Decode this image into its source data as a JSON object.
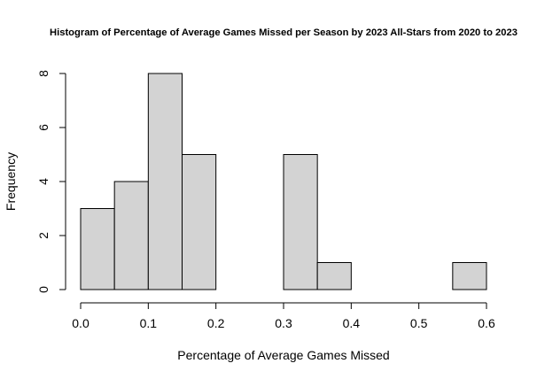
{
  "chart_data": {
    "type": "bar",
    "title": "Histogram of Percentage of Average Games Missed per Season by 2023 All-Stars from 2020 to 2023",
    "xlabel": "Percentage of Average Games Missed",
    "ylabel": "Frequency",
    "xlim": [
      0.0,
      0.6
    ],
    "ylim": [
      0,
      8
    ],
    "bins": [
      {
        "start": 0.0,
        "end": 0.05,
        "count": 3
      },
      {
        "start": 0.05,
        "end": 0.1,
        "count": 4
      },
      {
        "start": 0.1,
        "end": 0.15,
        "count": 8
      },
      {
        "start": 0.15,
        "end": 0.2,
        "count": 5
      },
      {
        "start": 0.2,
        "end": 0.25,
        "count": 0
      },
      {
        "start": 0.25,
        "end": 0.3,
        "count": 0
      },
      {
        "start": 0.3,
        "end": 0.35,
        "count": 5
      },
      {
        "start": 0.35,
        "end": 0.4,
        "count": 1
      },
      {
        "start": 0.4,
        "end": 0.45,
        "count": 0
      },
      {
        "start": 0.45,
        "end": 0.5,
        "count": 0
      },
      {
        "start": 0.5,
        "end": 0.55,
        "count": 0
      },
      {
        "start": 0.55,
        "end": 0.6,
        "count": 1
      }
    ],
    "x_ticks": [
      {
        "value": 0.0,
        "label": "0.0"
      },
      {
        "value": 0.1,
        "label": "0.1"
      },
      {
        "value": 0.2,
        "label": "0.2"
      },
      {
        "value": 0.3,
        "label": "0.3"
      },
      {
        "value": 0.4,
        "label": "0.4"
      },
      {
        "value": 0.5,
        "label": "0.5"
      },
      {
        "value": 0.6,
        "label": "0.6"
      }
    ],
    "y_ticks": [
      {
        "value": 0,
        "label": "0"
      },
      {
        "value": 2,
        "label": "2"
      },
      {
        "value": 4,
        "label": "4"
      },
      {
        "value": 6,
        "label": "6"
      },
      {
        "value": 8,
        "label": "8"
      }
    ],
    "grid": false,
    "legend": "none",
    "colors": {
      "bar_fill": "#d3d3d3",
      "bar_stroke": "#000000",
      "background": "#ffffff"
    }
  }
}
